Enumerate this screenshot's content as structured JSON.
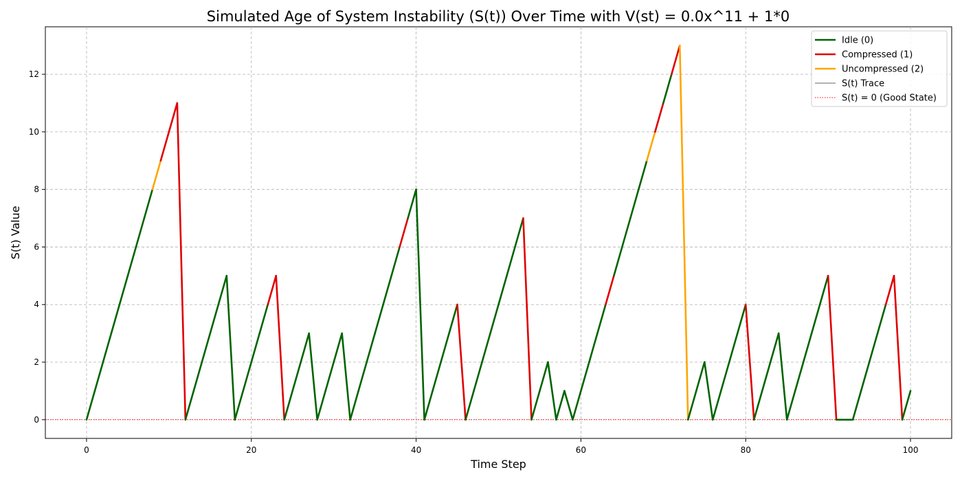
{
  "chart_data": {
    "type": "line",
    "title": "Simulated Age of System Instability (S(t)) Over Time with V(st) = 0.0x^11 + 1*0",
    "xlabel": "Time Step",
    "ylabel": "S(t) Value",
    "xlim": [
      -5,
      105
    ],
    "ylim": [
      -0.65,
      13.65
    ],
    "xticks": [
      0,
      20,
      40,
      60,
      80,
      100
    ],
    "yticks": [
      0,
      2,
      4,
      6,
      8,
      10,
      12
    ],
    "grid": true,
    "legend_position": "top-right",
    "states": [
      {
        "code": 0,
        "name": "Idle (0)",
        "color": "#006400"
      },
      {
        "code": 1,
        "name": "Compressed (1)",
        "color": "#e00000"
      },
      {
        "code": 2,
        "name": "Uncompressed (2)",
        "color": "#ffa500"
      }
    ],
    "legend": [
      {
        "label": "Idle (0)",
        "color": "#006400",
        "style": "solid-thick"
      },
      {
        "label": "Compressed (1)",
        "color": "#e00000",
        "style": "solid-thick"
      },
      {
        "label": "Uncompressed (2)",
        "color": "#ffa500",
        "style": "solid-thick"
      },
      {
        "label": "S(t) Trace",
        "color": "#333333",
        "style": "solid-thin"
      },
      {
        "label": "S(t) = 0 (Good State)",
        "color": "#ff0000",
        "style": "dotted"
      }
    ],
    "reference_line": {
      "y": 0,
      "label": "S(t) = 0 (Good State)",
      "color": "#ff0000"
    },
    "x": [
      0,
      1,
      2,
      3,
      4,
      5,
      6,
      7,
      8,
      9,
      10,
      11,
      12,
      13,
      14,
      15,
      16,
      17,
      18,
      19,
      20,
      21,
      22,
      23,
      24,
      25,
      26,
      27,
      28,
      29,
      30,
      31,
      32,
      33,
      34,
      35,
      36,
      37,
      38,
      39,
      40,
      41,
      42,
      43,
      44,
      45,
      46,
      47,
      48,
      49,
      50,
      51,
      52,
      53,
      54,
      55,
      56,
      57,
      58,
      59,
      60,
      61,
      62,
      63,
      64,
      65,
      66,
      67,
      68,
      69,
      70,
      71,
      72,
      73,
      74,
      75,
      76,
      77,
      78,
      79,
      80,
      81,
      82,
      83,
      84,
      85,
      86,
      87,
      88,
      89,
      90,
      91,
      92,
      93,
      94,
      95,
      96,
      97,
      98,
      99,
      100
    ],
    "y": [
      0,
      1,
      2,
      3,
      4,
      5,
      6,
      7,
      8,
      9,
      10,
      11,
      0,
      1,
      2,
      3,
      4,
      5,
      0,
      1,
      2,
      3,
      4,
      5,
      0,
      1,
      2,
      3,
      0,
      1,
      2,
      3,
      0,
      1,
      2,
      3,
      4,
      5,
      6,
      7,
      8,
      0,
      1,
      2,
      3,
      4,
      0,
      1,
      2,
      3,
      4,
      5,
      6,
      7,
      0,
      1,
      2,
      0,
      1,
      0,
      1,
      2,
      3,
      4,
      5,
      6,
      7,
      8,
      9,
      10,
      11,
      12,
      13,
      0,
      1,
      2,
      0,
      1,
      2,
      3,
      4,
      0,
      1,
      2,
      3,
      0,
      1,
      2,
      3,
      4,
      5,
      0,
      0,
      0,
      1,
      2,
      3,
      4,
      5,
      0,
      1
    ],
    "segment_states": [
      0,
      0,
      0,
      0,
      0,
      0,
      0,
      0,
      2,
      1,
      1,
      1,
      0,
      0,
      0,
      0,
      0,
      0,
      0,
      0,
      0,
      0,
      1,
      1,
      0,
      0,
      0,
      0,
      0,
      0,
      0,
      0,
      0,
      0,
      0,
      0,
      0,
      0,
      1,
      0,
      0,
      0,
      0,
      0,
      0,
      1,
      0,
      0,
      0,
      0,
      0,
      0,
      0,
      1,
      0,
      0,
      0,
      0,
      0,
      0,
      0,
      0,
      0,
      1,
      0,
      0,
      0,
      0,
      2,
      1,
      0,
      1,
      2,
      0,
      0,
      0,
      0,
      0,
      0,
      0,
      1,
      0,
      0,
      0,
      0,
      0,
      0,
      0,
      0,
      0,
      1,
      0,
      0,
      0,
      0,
      0,
      0,
      1,
      1,
      0
    ]
  }
}
